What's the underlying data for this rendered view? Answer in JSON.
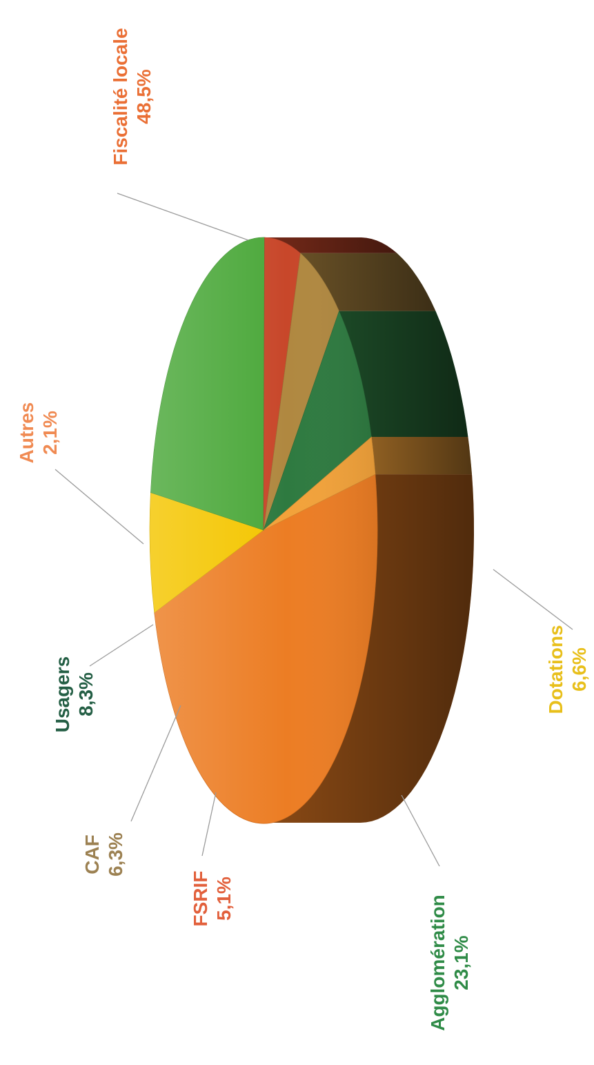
{
  "chart_data": {
    "type": "pie",
    "title": "",
    "slices": [
      {
        "name": "Fiscalité locale",
        "value": 48.5,
        "value_label": "48,5%",
        "color": "#ec7d24",
        "label_color": "#ea6f35"
      },
      {
        "name": "Dotations",
        "value": 6.6,
        "value_label": "6,6%",
        "color": "#f4c600",
        "label_color": "#e8bf1a"
      },
      {
        "name": "Agglomération",
        "value": 23.1,
        "value_label": "23,1%",
        "color": "#4ba83a",
        "label_color": "#2f8b47"
      },
      {
        "name": "FSRIF",
        "value": 5.1,
        "value_label": "5,1%",
        "color": "#c8472a",
        "label_color": "#e2603c"
      },
      {
        "name": "CAF",
        "value": 6.3,
        "value_label": "6,3%",
        "color": "#b08840",
        "label_color": "#9c8152"
      },
      {
        "name": "Usagers",
        "value": 8.3,
        "value_label": "8,3%",
        "color": "#2e7a40",
        "label_color": "#235e44"
      },
      {
        "name": "Autres",
        "value": 2.1,
        "value_label": "2,1%",
        "color": "#f2a23a",
        "label_color": "#f08a52"
      }
    ],
    "legend": "none"
  }
}
